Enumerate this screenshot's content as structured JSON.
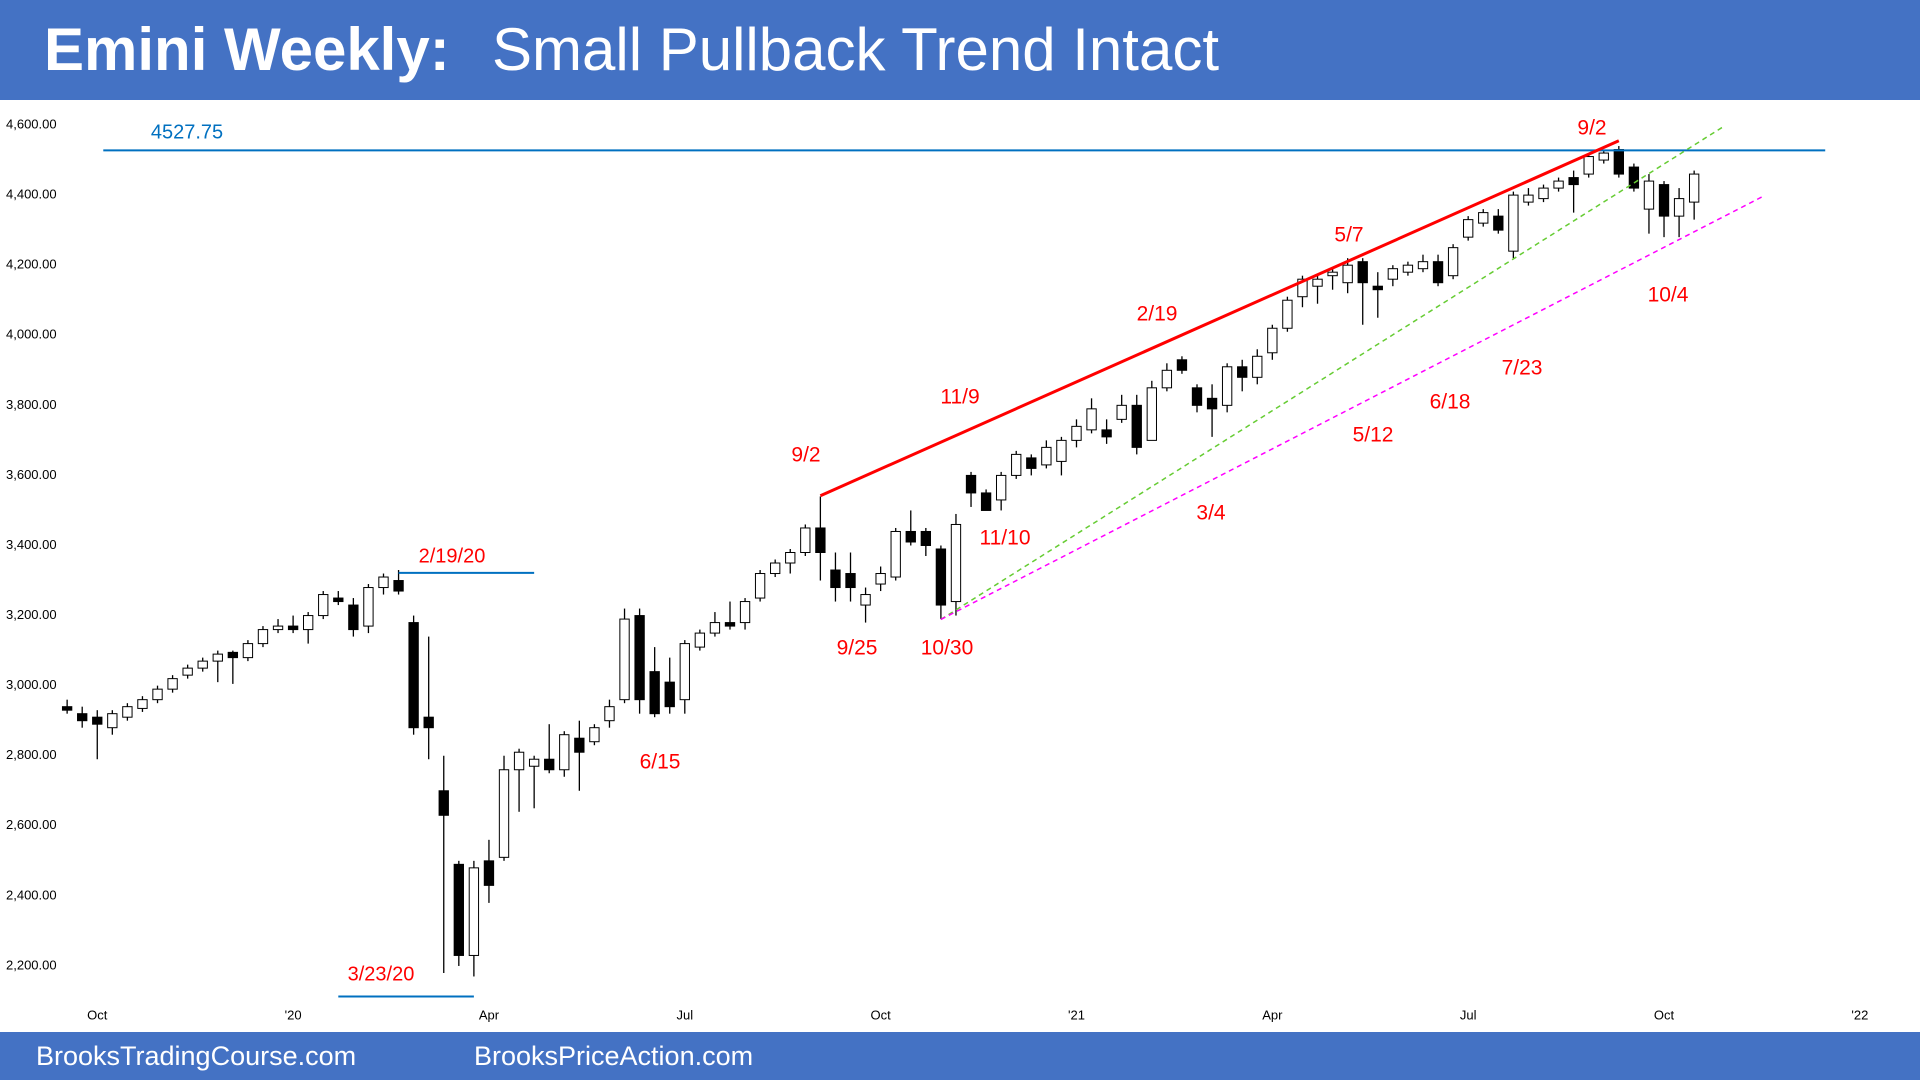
{
  "chart_data": {
    "type": "candlestick",
    "title": "Emini Weekly:",
    "subtitle": "Small Pullback Trend Intact",
    "up_color": "#ffffff",
    "down_color": "#000000",
    "edge_color": "#000000",
    "open": [
      2940,
      2920,
      2910,
      2880,
      2910,
      2935,
      2960,
      2990,
      3030,
      3050,
      3070,
      3095,
      3080,
      3120,
      3160,
      3170,
      3160,
      3200,
      3250,
      3230,
      3170,
      3280,
      3300,
      3180,
      2910,
      2700,
      2490,
      2230,
      2500,
      2510,
      2760,
      2770,
      2790,
      2760,
      2850,
      2840,
      2900,
      2960,
      3200,
      3040,
      3010,
      2960,
      3110,
      3150,
      3180,
      3180,
      3250,
      3320,
      3350,
      3380,
      3450,
      3330,
      3320,
      3230,
      3290,
      3310,
      3440,
      3440,
      3390,
      3240,
      3600,
      3550,
      3530,
      3600,
      3650,
      3630,
      3640,
      3700,
      3730,
      3730,
      3760,
      3800,
      3700,
      3850,
      3930,
      3850,
      3820,
      3800,
      3910,
      3880,
      3950,
      4020,
      4110,
      4140,
      4170,
      4150,
      4210,
      4140,
      4160,
      4180,
      4190,
      4210,
      4170,
      4280,
      4320,
      4340,
      4240,
      4380,
      4390,
      4420,
      4450,
      4460,
      4500,
      4530,
      4480,
      4360,
      4430,
      4340,
      4380
    ],
    "high": [
      2960,
      2940,
      2930,
      2930,
      2950,
      2970,
      3000,
      3030,
      3060,
      3080,
      3100,
      3100,
      3130,
      3170,
      3190,
      3200,
      3210,
      3270,
      3270,
      3250,
      3290,
      3320,
      3330,
      3200,
      3140,
      2800,
      2500,
      2500,
      2560,
      2800,
      2820,
      2800,
      2890,
      2870,
      2900,
      2890,
      2960,
      3220,
      3220,
      3110,
      3080,
      3130,
      3160,
      3210,
      3240,
      3250,
      3330,
      3360,
      3390,
      3460,
      3540,
      3380,
      3380,
      3280,
      3340,
      3450,
      3500,
      3450,
      3400,
      3490,
      3610,
      3560,
      3610,
      3670,
      3660,
      3700,
      3710,
      3760,
      3820,
      3760,
      3830,
      3830,
      3870,
      3920,
      3940,
      3860,
      3860,
      3920,
      3930,
      3960,
      4030,
      4110,
      4170,
      4170,
      4190,
      4220,
      4220,
      4180,
      4200,
      4210,
      4230,
      4230,
      4260,
      4340,
      4360,
      4360,
      4410,
      4420,
      4430,
      4450,
      4470,
      4520,
      4530,
      4540,
      4490,
      4460,
      4440,
      4420,
      4470
    ],
    "low": [
      2920,
      2880,
      2790,
      2860,
      2900,
      2925,
      2950,
      2980,
      3020,
      3040,
      3010,
      3005,
      3070,
      3110,
      3150,
      3150,
      3120,
      3190,
      3230,
      3140,
      3150,
      3260,
      3260,
      2860,
      2790,
      2180,
      2200,
      2170,
      2380,
      2500,
      2640,
      2650,
      2750,
      2740,
      2700,
      2830,
      2880,
      2950,
      2920,
      2910,
      2920,
      2920,
      3100,
      3140,
      3160,
      3160,
      3240,
      3310,
      3320,
      3370,
      3300,
      3240,
      3240,
      3180,
      3270,
      3300,
      3400,
      3370,
      3190,
      3200,
      3510,
      3500,
      3500,
      3590,
      3600,
      3620,
      3600,
      3680,
      3720,
      3690,
      3750,
      3660,
      3700,
      3840,
      3890,
      3780,
      3710,
      3780,
      3840,
      3860,
      3930,
      4010,
      4080,
      4090,
      4130,
      4120,
      4030,
      4050,
      4140,
      4170,
      4180,
      4140,
      4160,
      4270,
      4310,
      4290,
      4220,
      4370,
      4380,
      4410,
      4350,
      4450,
      4490,
      4450,
      4410,
      4290,
      4280,
      4280,
      4330
    ],
    "close": [
      2930,
      2900,
      2890,
      2920,
      2940,
      2960,
      2990,
      3020,
      3050,
      3070,
      3090,
      3080,
      3120,
      3160,
      3170,
      3160,
      3200,
      3260,
      3240,
      3160,
      3280,
      3310,
      3270,
      2880,
      2880,
      2630,
      2230,
      2480,
      2430,
      2760,
      2810,
      2790,
      2760,
      2860,
      2810,
      2880,
      2940,
      3190,
      2960,
      2920,
      2940,
      3120,
      3150,
      3180,
      3170,
      3240,
      3320,
      3350,
      3380,
      3450,
      3380,
      3280,
      3280,
      3260,
      3320,
      3440,
      3410,
      3400,
      3230,
      3460,
      3550,
      3500,
      3600,
      3660,
      3620,
      3680,
      3700,
      3740,
      3790,
      3710,
      3800,
      3680,
      3850,
      3900,
      3900,
      3800,
      3790,
      3910,
      3880,
      3940,
      4020,
      4100,
      4160,
      4160,
      4180,
      4200,
      4150,
      4130,
      4190,
      4200,
      4210,
      4150,
      4250,
      4330,
      4350,
      4300,
      4400,
      4400,
      4420,
      4440,
      4430,
      4510,
      4520,
      4460,
      4420,
      4440,
      4340,
      4390,
      4460
    ],
    "xlim": [
      -2,
      121
    ],
    "xticks": [
      {
        "value": 2,
        "label": "Oct"
      },
      {
        "value": 15,
        "label": "'20"
      },
      {
        "value": 28,
        "label": "Apr"
      },
      {
        "value": 41,
        "label": "Jul"
      },
      {
        "value": 54,
        "label": "Oct"
      },
      {
        "value": 67,
        "label": "'21"
      },
      {
        "value": 80,
        "label": "Apr"
      },
      {
        "value": 93,
        "label": "Jul"
      },
      {
        "value": 106,
        "label": "Oct"
      },
      {
        "value": 119,
        "label": "'22"
      }
    ],
    "ylim": [
      2100,
      4660
    ],
    "yticks": [
      {
        "value": 2200,
        "label": "2,200.00"
      },
      {
        "value": 2400,
        "label": "2,400.00"
      },
      {
        "value": 2600,
        "label": "2,600.00"
      },
      {
        "value": 2800,
        "label": "2,800.00"
      },
      {
        "value": 3000,
        "label": "3,000.00"
      },
      {
        "value": 3200,
        "label": "3,200.00"
      },
      {
        "value": 3400,
        "label": "3,400.00"
      },
      {
        "value": 3600,
        "label": "3,600.00"
      },
      {
        "value": 3800,
        "label": "3,800.00"
      },
      {
        "value": 4000,
        "label": "4,000.00"
      },
      {
        "value": 4200,
        "label": "4,200.00"
      },
      {
        "value": 4400,
        "label": "4,400.00"
      },
      {
        "value": 4600,
        "label": "4,600.00"
      }
    ],
    "grid": false,
    "lines": [
      {
        "color": "#0070c0",
        "dash": false,
        "width": 2,
        "from": [
          2.4,
          4527.75
        ],
        "to": [
          116.7,
          4527.75
        ],
        "label": 4527.75
      },
      {
        "color": "#0070c0",
        "dash": false,
        "width": 2,
        "from": [
          22,
          3322
        ],
        "to": [
          31,
          3322
        ],
        "label": "2/19/20"
      },
      {
        "color": "#0070c0",
        "dash": false,
        "width": 2,
        "from": [
          18,
          2113
        ],
        "to": [
          27,
          2113
        ],
        "label": "3/23/20"
      },
      {
        "color": "#ff0000",
        "dash": false,
        "width": 3,
        "from": [
          50,
          3542
        ],
        "to": [
          103,
          4555
        ]
      },
      {
        "color": "#66cc33",
        "dash": true,
        "width": 1.5,
        "from": [
          58,
          3189
        ],
        "to": [
          110,
          4597
        ]
      },
      {
        "color": "#ff00ff",
        "dash": true,
        "width": 1.5,
        "from": [
          58,
          3189
        ],
        "to": [
          112.6,
          4397
        ]
      }
    ],
    "annotation_color": "#ff0000",
    "annotations": [
      "9/2",
      "5/7",
      "2/19",
      "11/9",
      "9/2",
      "11/10",
      "9/25",
      "10/30",
      "3/4",
      "5/12",
      "6/18",
      "7/23",
      "10/4",
      "6/15"
    ]
  },
  "footer": {
    "left": "BrooksTradingCourse.com",
    "right": "BrooksPriceAction.com"
  }
}
